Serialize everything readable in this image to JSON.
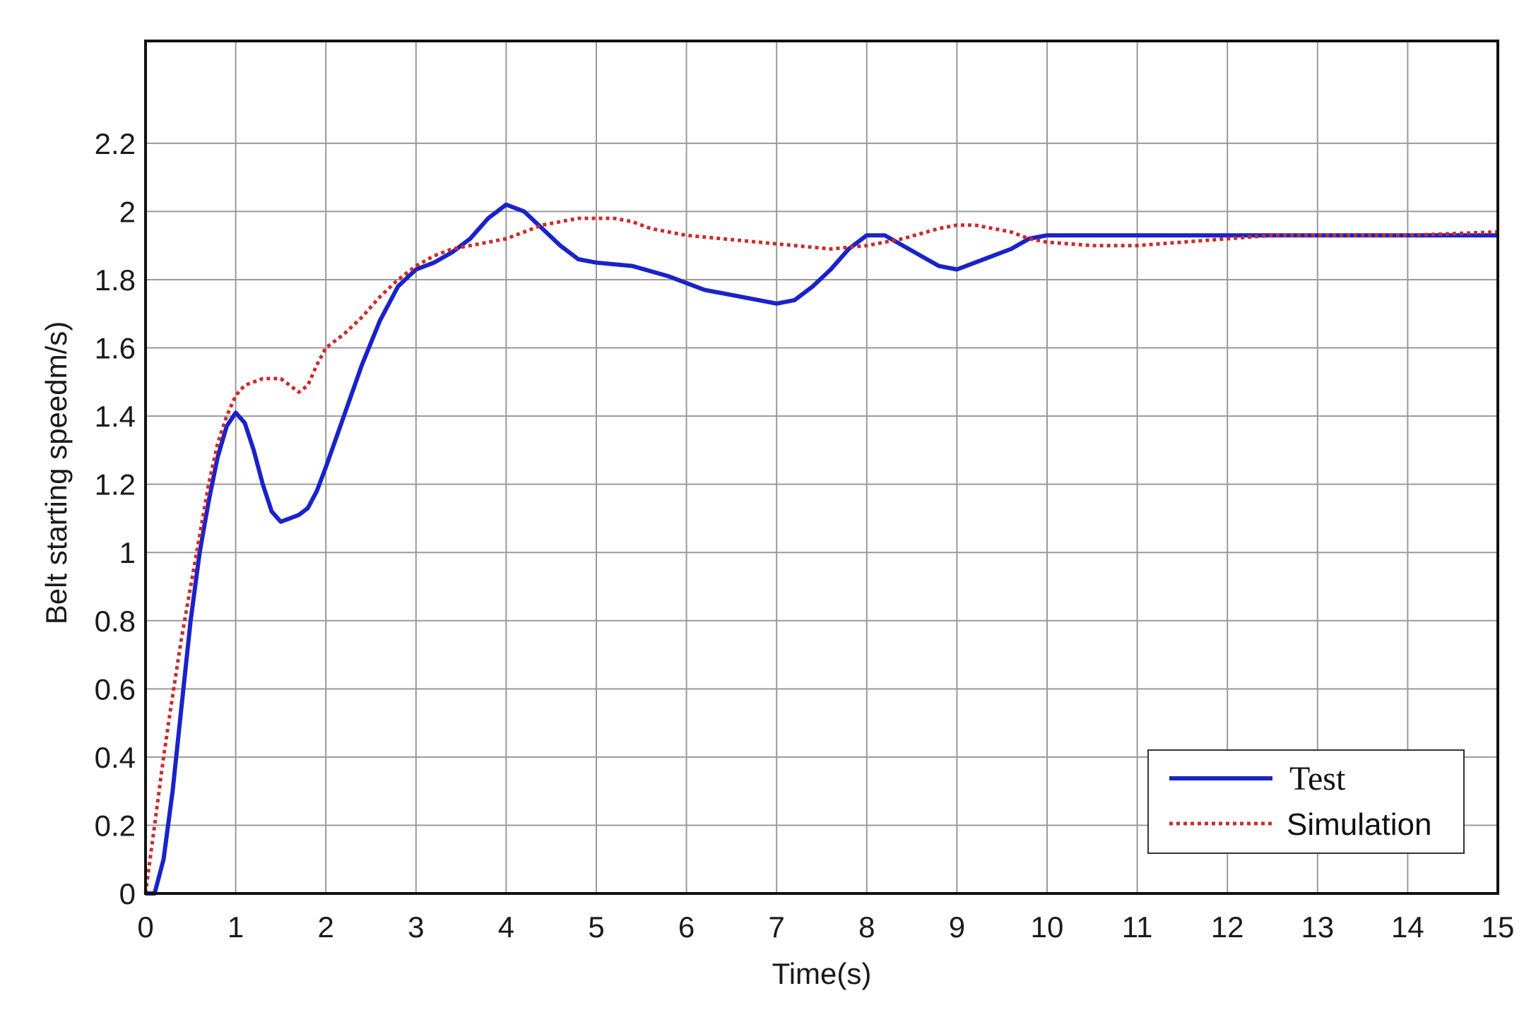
{
  "chart_data": {
    "type": "line",
    "title": "",
    "xlabel": "Time(s)",
    "ylabel": "Belt starting speedm/s)",
    "xlim": [
      0,
      15
    ],
    "ylim": [
      0,
      2.5
    ],
    "xticks": [
      "0",
      "1",
      "2",
      "3",
      "4",
      "5",
      "6",
      "7",
      "8",
      "9",
      "10",
      "11",
      "12",
      "13",
      "14",
      "15"
    ],
    "yticks": [
      "0",
      "0.2",
      "0.4",
      "0.6",
      "0.8",
      "1",
      "1.2",
      "1.4",
      "1.6",
      "1.8",
      "2",
      "2.2"
    ],
    "grid": true,
    "legend_position": "bottom-right",
    "series": [
      {
        "name": "Test",
        "color": "#1a23c8",
        "style": "solid",
        "points": [
          [
            0,
            0
          ],
          [
            0.1,
            0
          ],
          [
            0.2,
            0.1
          ],
          [
            0.3,
            0.3
          ],
          [
            0.4,
            0.55
          ],
          [
            0.5,
            0.8
          ],
          [
            0.6,
            1.0
          ],
          [
            0.7,
            1.15
          ],
          [
            0.8,
            1.28
          ],
          [
            0.9,
            1.37
          ],
          [
            1.0,
            1.41
          ],
          [
            1.1,
            1.38
          ],
          [
            1.2,
            1.3
          ],
          [
            1.3,
            1.2
          ],
          [
            1.4,
            1.12
          ],
          [
            1.5,
            1.09
          ],
          [
            1.6,
            1.1
          ],
          [
            1.7,
            1.11
          ],
          [
            1.8,
            1.13
          ],
          [
            1.9,
            1.18
          ],
          [
            2.0,
            1.25
          ],
          [
            2.2,
            1.4
          ],
          [
            2.4,
            1.55
          ],
          [
            2.6,
            1.68
          ],
          [
            2.8,
            1.78
          ],
          [
            3.0,
            1.83
          ],
          [
            3.2,
            1.85
          ],
          [
            3.4,
            1.88
          ],
          [
            3.6,
            1.92
          ],
          [
            3.8,
            1.98
          ],
          [
            4.0,
            2.02
          ],
          [
            4.2,
            2.0
          ],
          [
            4.4,
            1.95
          ],
          [
            4.6,
            1.9
          ],
          [
            4.8,
            1.86
          ],
          [
            5.0,
            1.85
          ],
          [
            5.4,
            1.84
          ],
          [
            5.8,
            1.81
          ],
          [
            6.2,
            1.77
          ],
          [
            6.6,
            1.75
          ],
          [
            7.0,
            1.73
          ],
          [
            7.2,
            1.74
          ],
          [
            7.4,
            1.78
          ],
          [
            7.6,
            1.83
          ],
          [
            7.8,
            1.89
          ],
          [
            8.0,
            1.93
          ],
          [
            8.2,
            1.93
          ],
          [
            8.4,
            1.9
          ],
          [
            8.6,
            1.87
          ],
          [
            8.8,
            1.84
          ],
          [
            9.0,
            1.83
          ],
          [
            9.2,
            1.85
          ],
          [
            9.4,
            1.87
          ],
          [
            9.6,
            1.89
          ],
          [
            9.8,
            1.92
          ],
          [
            10.0,
            1.93
          ],
          [
            10.5,
            1.93
          ],
          [
            11.0,
            1.93
          ],
          [
            12.0,
            1.93
          ],
          [
            13.0,
            1.93
          ],
          [
            14.0,
            1.93
          ],
          [
            15.0,
            1.93
          ]
        ]
      },
      {
        "name": "Simulation",
        "color": "#cc2b2b",
        "style": "dotted",
        "points": [
          [
            0,
            0
          ],
          [
            0.1,
            0.2
          ],
          [
            0.2,
            0.4
          ],
          [
            0.3,
            0.58
          ],
          [
            0.4,
            0.75
          ],
          [
            0.5,
            0.9
          ],
          [
            0.6,
            1.05
          ],
          [
            0.7,
            1.2
          ],
          [
            0.8,
            1.32
          ],
          [
            0.9,
            1.4
          ],
          [
            1.0,
            1.46
          ],
          [
            1.1,
            1.49
          ],
          [
            1.2,
            1.5
          ],
          [
            1.3,
            1.51
          ],
          [
            1.4,
            1.51
          ],
          [
            1.5,
            1.51
          ],
          [
            1.6,
            1.49
          ],
          [
            1.7,
            1.47
          ],
          [
            1.8,
            1.49
          ],
          [
            1.9,
            1.55
          ],
          [
            2.0,
            1.6
          ],
          [
            2.2,
            1.64
          ],
          [
            2.4,
            1.69
          ],
          [
            2.6,
            1.75
          ],
          [
            2.8,
            1.8
          ],
          [
            3.0,
            1.84
          ],
          [
            3.2,
            1.87
          ],
          [
            3.4,
            1.89
          ],
          [
            3.6,
            1.9
          ],
          [
            3.8,
            1.91
          ],
          [
            4.0,
            1.92
          ],
          [
            4.2,
            1.94
          ],
          [
            4.4,
            1.96
          ],
          [
            4.6,
            1.97
          ],
          [
            4.8,
            1.98
          ],
          [
            5.0,
            1.98
          ],
          [
            5.2,
            1.98
          ],
          [
            5.4,
            1.97
          ],
          [
            5.6,
            1.95
          ],
          [
            5.8,
            1.94
          ],
          [
            6.0,
            1.93
          ],
          [
            6.4,
            1.92
          ],
          [
            6.8,
            1.91
          ],
          [
            7.2,
            1.9
          ],
          [
            7.6,
            1.89
          ],
          [
            8.0,
            1.9
          ],
          [
            8.4,
            1.92
          ],
          [
            8.8,
            1.95
          ],
          [
            9.0,
            1.96
          ],
          [
            9.2,
            1.96
          ],
          [
            9.4,
            1.95
          ],
          [
            9.6,
            1.94
          ],
          [
            9.8,
            1.92
          ],
          [
            10.0,
            1.91
          ],
          [
            10.5,
            1.9
          ],
          [
            11.0,
            1.9
          ],
          [
            11.5,
            1.91
          ],
          [
            12.0,
            1.92
          ],
          [
            12.5,
            1.93
          ],
          [
            13.0,
            1.93
          ],
          [
            14.0,
            1.93
          ],
          [
            15.0,
            1.94
          ]
        ]
      }
    ]
  }
}
